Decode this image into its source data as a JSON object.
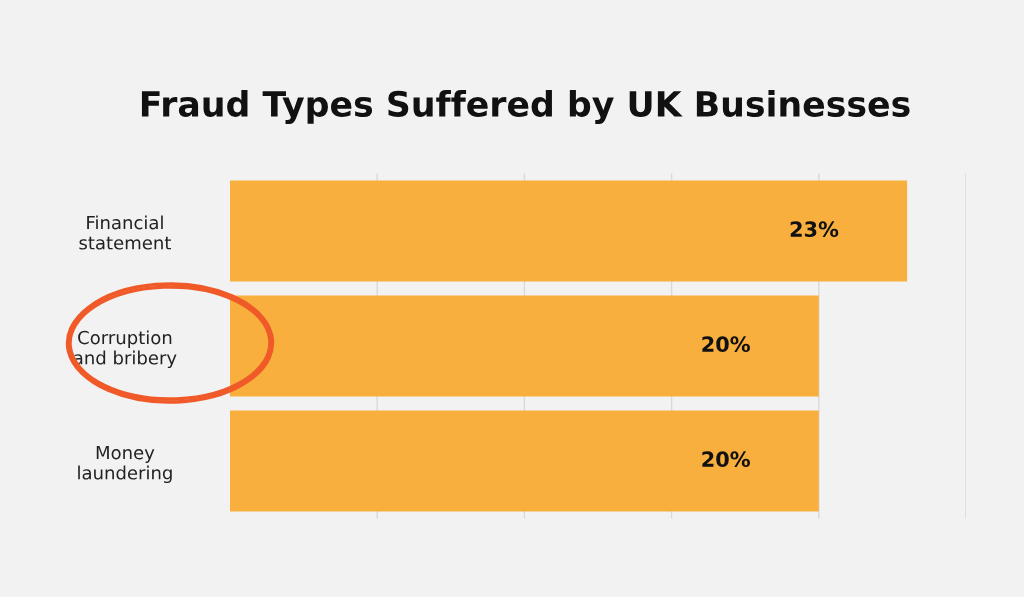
{
  "chart_data": {
    "type": "bar",
    "orientation": "horizontal",
    "title": "Fraud Types Suffered by UK Businesses",
    "categories": [
      "Financial\nstatement",
      "Corruption\nand bribery",
      "Money\nlaundering"
    ],
    "values": [
      23,
      20,
      20
    ],
    "color": "#f9af3d",
    "xlim": [
      0,
      25
    ],
    "xticks": [
      {
        "value": 5,
        "label": null
      },
      {
        "value": 10,
        "label": null
      },
      {
        "value": 15,
        "label": null
      },
      {
        "value": 20,
        "label": null
      },
      {
        "value": 25,
        "label": null
      }
    ],
    "value_labels": [
      "23%",
      "20%",
      "20%"
    ],
    "tick_labels": "y",
    "grid": "x",
    "legend": false
  }
}
